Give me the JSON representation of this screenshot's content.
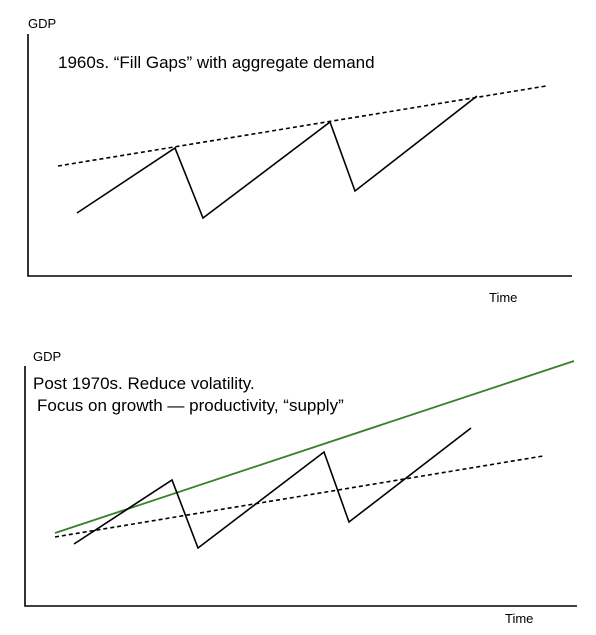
{
  "top_panel": {
    "y_axis_label": "GDP",
    "x_axis_label": "Time",
    "caption": "1960s. “Fill Gaps” with aggregate demand"
  },
  "bottom_panel": {
    "y_axis_label": "GDP",
    "x_axis_label": "Time",
    "caption_line1": "Post 1970s. Reduce volatility.",
    "caption_line2": "Focus on growth — productivity, “supply”"
  },
  "colors": {
    "axis": "#000000",
    "cycle_line": "#000000",
    "trend_dotted": "#000000",
    "growth_trend": "#3a7d2c"
  }
}
